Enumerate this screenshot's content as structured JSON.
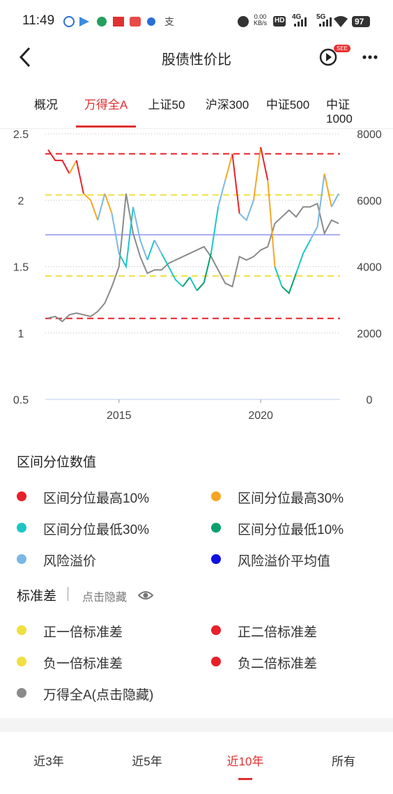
{
  "status_bar": {
    "time": "11:49",
    "net_speed": "0.00",
    "net_unit": "KB/s",
    "hd": "HD",
    "net1": "4G",
    "net2": "5G",
    "battery": "97"
  },
  "header": {
    "title": "股债性价比",
    "badge": "SEE"
  },
  "tabs": [
    "概况",
    "万得全A",
    "上证50",
    "沪深300",
    "中证500",
    "中证1000"
  ],
  "active_tab": 1,
  "chart_data": {
    "type": "line",
    "x": [
      2012.5,
      2012.75,
      2013.0,
      2013.25,
      2013.5,
      2013.75,
      2014.0,
      2014.25,
      2014.5,
      2014.75,
      2015.0,
      2015.25,
      2015.5,
      2015.75,
      2016.0,
      2016.25,
      2016.5,
      2016.75,
      2017.0,
      2017.25,
      2017.5,
      2017.75,
      2018.0,
      2018.25,
      2018.5,
      2018.75,
      2019.0,
      2019.25,
      2019.5,
      2019.75,
      2020.0,
      2020.25,
      2020.5,
      2020.75,
      2021.0,
      2021.25,
      2021.5,
      2021.75,
      2022.0,
      2022.25,
      2022.5,
      2022.75
    ],
    "series": [
      {
        "name": "风险溢价",
        "color": "#7ab8e6",
        "values": [
          2.38,
          2.3,
          2.3,
          2.2,
          2.3,
          2.05,
          2.0,
          1.85,
          2.05,
          1.9,
          1.6,
          1.5,
          1.95,
          1.7,
          1.55,
          1.7,
          1.6,
          1.5,
          1.4,
          1.35,
          1.42,
          1.32,
          1.38,
          1.6,
          1.95,
          2.15,
          2.35,
          1.9,
          1.85,
          2.0,
          2.4,
          2.15,
          1.5,
          1.35,
          1.3,
          1.45,
          1.6,
          1.7,
          1.8,
          2.2,
          1.95,
          2.05
        ]
      },
      {
        "name": "万得全A(点击隐藏)",
        "color": "#8a8a8a",
        "axis": "y2",
        "values": [
          2450,
          2500,
          2350,
          2550,
          2600,
          2550,
          2500,
          2650,
          2900,
          3400,
          4000,
          6200,
          5000,
          4300,
          3800,
          3900,
          3900,
          4100,
          4200,
          4300,
          4400,
          4500,
          4600,
          4300,
          3900,
          3500,
          3400,
          4300,
          4200,
          4300,
          4500,
          4600,
          5300,
          5500,
          5700,
          5500,
          5800,
          5800,
          5900,
          5000,
          5400,
          5300
        ]
      }
    ],
    "quantile_bands": [
      {
        "name": "区间分位最高10%",
        "color": "#e8202a"
      },
      {
        "name": "区间分位最高30%",
        "color": "#f5a623"
      },
      {
        "name": "区间分位最低30%",
        "color": "#1cc6c6"
      },
      {
        "name": "区间分位最低10%",
        "color": "#0aa06e"
      }
    ],
    "mean_line": {
      "name": "风险溢价平均值",
      "color": "#1010e0",
      "value": 1.74
    },
    "reference_lines": [
      {
        "name": "正一倍标准差",
        "color": "#f0e040",
        "value": 2.04
      },
      {
        "name": "正二倍标准差",
        "color": "#e8202a",
        "value": 2.35
      },
      {
        "name": "负一倍标准差",
        "color": "#f0e040",
        "value": 1.43
      },
      {
        "name": "负二倍标准差",
        "color": "#e8202a",
        "value": 1.11
      }
    ],
    "xlim": [
      2012.4,
      2022.8
    ],
    "xticks": [
      2015,
      2020
    ],
    "ylim": [
      0.5,
      2.5
    ],
    "yticks": [
      0.5,
      1,
      1.5,
      2,
      2.5
    ],
    "y2lim": [
      0,
      8000
    ],
    "y2ticks": [
      0,
      2000,
      4000,
      6000,
      8000
    ],
    "grid": true
  },
  "legend_sections": {
    "quantile_title": "区间分位数值",
    "std_title": "标准差",
    "hide_hint": "点击隐藏"
  },
  "bottom_tabs": [
    "近3年",
    "近5年",
    "近10年",
    "所有"
  ],
  "active_bottom_tab": 2
}
